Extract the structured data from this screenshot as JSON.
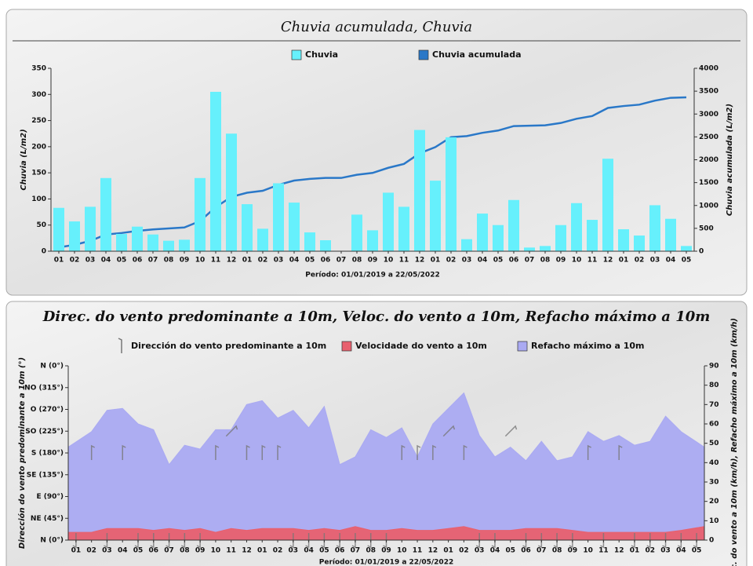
{
  "chart_data": [
    {
      "type": "bar",
      "title": "Chuvia acumulada, Chuvia",
      "x_label": "Período: 01/01/2019 a 22/05/2022",
      "y_label": "Chuvia (L/m2)",
      "y2_label": "Chuvia acumulada (L/m2)",
      "categories": [
        "01",
        "02",
        "03",
        "04",
        "05",
        "06",
        "07",
        "08",
        "09",
        "10",
        "11",
        "12",
        "01",
        "02",
        "03",
        "04",
        "05",
        "06",
        "07",
        "08",
        "09",
        "10",
        "11",
        "12",
        "01",
        "02",
        "03",
        "04",
        "05",
        "06",
        "07",
        "08",
        "09",
        "10",
        "11",
        "12",
        "01",
        "02",
        "03",
        "04",
        "05"
      ],
      "series": [
        {
          "name": "Chuvia acumulada",
          "type": "line",
          "axis": "y2",
          "color": "#2a78c8",
          "values": [
            83,
            140,
            225,
            365,
            398,
            445,
            477,
            497,
            519,
            659,
            964,
            1189,
            1279,
            1322,
            1452,
            1545,
            1581,
            1602,
            1602,
            1672,
            1712,
            1824,
            1909,
            2141,
            2276,
            2494,
            2517,
            2589,
            2639,
            2737,
            2744,
            2754,
            2804,
            2896,
            2956,
            3133,
            3175,
            3205,
            3293,
            3355,
            3365
          ]
        },
        {
          "name": "Chuvia",
          "type": "bar",
          "color": "#66f0fc",
          "values": [
            83,
            57,
            85,
            140,
            33,
            47,
            32,
            20,
            22,
            140,
            305,
            225,
            90,
            43,
            130,
            93,
            36,
            21,
            0,
            70,
            40,
            112,
            85,
            232,
            135,
            218,
            23,
            72,
            50,
            98,
            7,
            10,
            50,
            92,
            60,
            177,
            42,
            30,
            88,
            62,
            10
          ]
        }
      ],
      "ylim": [
        0,
        350
      ],
      "yticks": [
        0,
        50,
        100,
        150,
        200,
        250,
        300,
        350
      ],
      "y2lim": [
        0,
        4000
      ],
      "y2ticks": [
        0,
        500,
        1000,
        1500,
        2000,
        2500,
        3000,
        3500,
        4000
      ]
    },
    {
      "type": "area",
      "title": "Direc. do vento predominante a 10m, Veloc. do vento a 10m, Refacho máximo a 10m",
      "x_label": "Período: 01/01/2019 a 22/05/2022",
      "y_label": "Dirección do vento predominante a 10m (°)",
      "y2_label": "Veloc. do vento a 10m (km/h), Refacho máximo a 10m (km/h)",
      "categories": [
        "01",
        "02",
        "03",
        "04",
        "05",
        "06",
        "07",
        "08",
        "09",
        "10",
        "11",
        "12",
        "01",
        "02",
        "03",
        "04",
        "05",
        "06",
        "07",
        "08",
        "09",
        "10",
        "11",
        "12",
        "01",
        "02",
        "03",
        "04",
        "05",
        "06",
        "07",
        "08",
        "09",
        "10",
        "11",
        "12",
        "01",
        "02",
        "03",
        "04",
        "05"
      ],
      "series": [
        {
          "name": "Refacho máximo a 10m",
          "type": "area",
          "axis": "y2",
          "color": "#aaaaf2",
          "values": [
            48,
            56,
            67,
            68,
            60,
            57,
            39,
            49,
            47,
            57,
            57,
            70,
            72,
            63,
            67,
            58,
            69,
            39,
            43,
            57,
            53,
            58,
            43,
            60,
            68,
            76,
            54,
            43,
            48,
            41,
            51,
            41,
            43,
            56,
            51,
            54,
            49,
            51,
            64,
            56,
            48
          ]
        },
        {
          "name": "Velocidade do vento a 10m",
          "type": "area",
          "axis": "y2",
          "color": "#e8606e",
          "values": [
            4,
            4,
            6,
            6,
            6,
            5,
            6,
            5,
            6,
            4,
            6,
            5,
            6,
            6,
            6,
            5,
            6,
            5,
            7,
            5,
            5,
            6,
            5,
            5,
            6,
            7,
            5,
            5,
            5,
            6,
            6,
            6,
            5,
            4,
            4,
            4,
            4,
            4,
            4,
            5,
            7
          ]
        },
        {
          "name": "Dirección do vento predominante a 10m",
          "type": "arrow",
          "color": "#777777",
          "values": [
            0,
            180,
            0,
            180,
            0,
            0,
            0,
            0,
            0,
            180,
            225,
            180,
            180,
            180,
            0,
            0,
            0,
            0,
            0,
            0,
            0,
            180,
            180,
            180,
            225,
            180,
            0,
            0,
            225,
            0,
            0,
            0,
            0,
            180,
            0,
            180,
            0,
            0,
            0,
            0,
            0
          ]
        }
      ],
      "ylim": [
        0,
        360
      ],
      "yticks": [
        {
          "value": 0,
          "label": "N (0°)"
        },
        {
          "value": 45,
          "label": "NE (45°)"
        },
        {
          "value": 90,
          "label": "E (90°)"
        },
        {
          "value": 135,
          "label": "SE (135°)"
        },
        {
          "value": 180,
          "label": "S (180°)"
        },
        {
          "value": 225,
          "label": "SO (225°)"
        },
        {
          "value": 270,
          "label": "O (270°)"
        },
        {
          "value": 315,
          "label": "NO (315°)"
        },
        {
          "value": 360,
          "label": "N (0°)"
        }
      ],
      "y2lim": [
        0,
        90
      ],
      "y2ticks": [
        0,
        10,
        20,
        30,
        40,
        50,
        60,
        70,
        80,
        90
      ]
    }
  ]
}
